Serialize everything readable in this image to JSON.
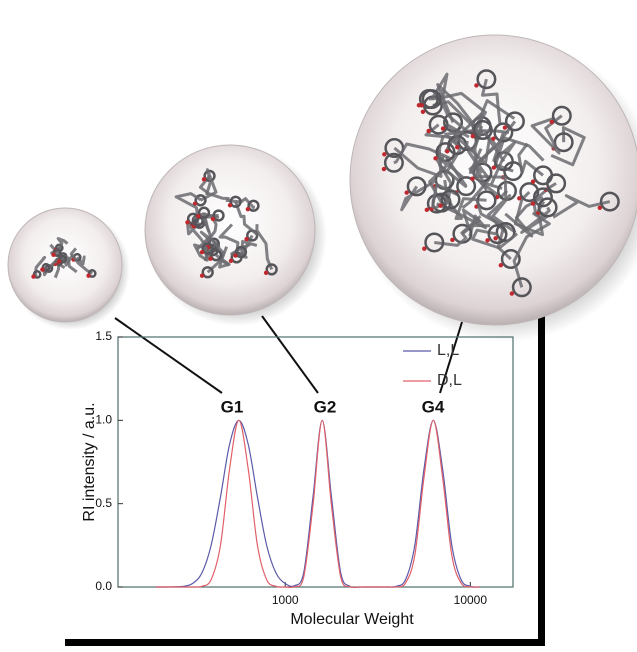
{
  "chart_data": {
    "type": "line",
    "x_label": "Molecular Weight",
    "y_label": "RI intensity / a.u.",
    "x": [
      200,
      224,
      251,
      282,
      316,
      355,
      398,
      447,
      501,
      562,
      631,
      708,
      794,
      891,
      1000,
      1122,
      1259,
      1413,
      1585,
      1778,
      1995,
      2239,
      2512,
      2818,
      3162,
      3548,
      3981,
      4467,
      5012,
      5623,
      6310,
      7079,
      7943,
      8913,
      10000,
      11220
    ],
    "series": [
      {
        "name": "L,L",
        "color": "#5a5aa8",
        "values": [
          0,
          0,
          0.001,
          0.004,
          0.021,
          0.085,
          0.25,
          0.54,
          0.857,
          1,
          0.857,
          0.54,
          0.25,
          0.085,
          0.021,
          0.008,
          0.086,
          0.54,
          1,
          0.54,
          0.085,
          0.004,
          0,
          0,
          0,
          0,
          0.004,
          0.044,
          0.25,
          0.71,
          1,
          0.71,
          0.25,
          0.044,
          0.004,
          0
        ]
      },
      {
        "name": "D,L",
        "color": "#e0606a",
        "values": [
          0,
          0,
          0,
          0,
          0,
          0.004,
          0.044,
          0.25,
          0.71,
          1,
          0.71,
          0.25,
          0.044,
          0.004,
          0,
          0.002,
          0.06,
          0.49,
          1,
          0.49,
          0.06,
          0.002,
          0,
          0,
          0,
          0,
          0.001,
          0.024,
          0.19,
          0.66,
          1,
          0.66,
          0.19,
          0.024,
          0.001,
          0
        ]
      }
    ],
    "annotations": [
      "G1",
      "G2",
      "G4"
    ],
    "xlim": [
      125,
      17000
    ],
    "ylim": [
      0,
      1.5
    ],
    "xticks": [
      1000,
      10000
    ],
    "yticks": [
      {
        "value": 0,
        "label": "0.0"
      },
      {
        "value": 0.5,
        "label": "0.5"
      },
      {
        "value": 1,
        "label": "1.0"
      },
      {
        "value": 1.5,
        "label": "1.5"
      }
    ],
    "log_x": true,
    "legend": "top-right"
  }
}
